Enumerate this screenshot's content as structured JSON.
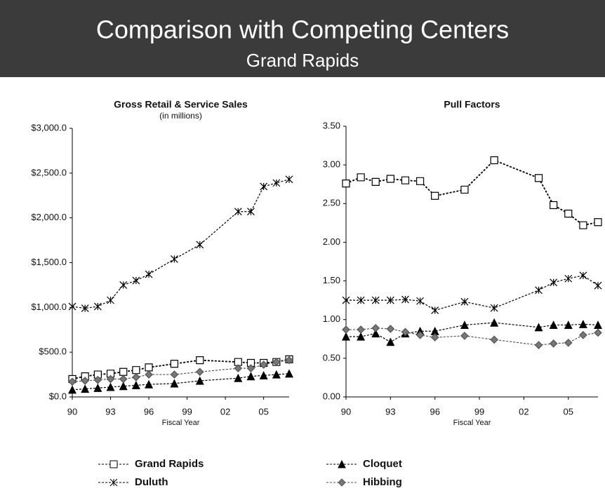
{
  "header": {
    "title": "Comparison with Competing Centers",
    "subtitle": "Grand Rapids"
  },
  "chart_data": [
    {
      "type": "line",
      "title": "Gross Retail & Service Sales",
      "subtitle": "(in millions)",
      "x_label": "Fiscal Year",
      "x": [
        1990,
        1991,
        1992,
        1993,
        1994,
        1995,
        1996,
        1998,
        2000,
        2003,
        2004,
        2005,
        2006,
        2007
      ],
      "xlim": [
        1990,
        2007
      ],
      "xticks": [
        {
          "value": 1990,
          "label": "90"
        },
        {
          "value": 1993,
          "label": "93"
        },
        {
          "value": 1996,
          "label": "96"
        },
        {
          "value": 1999,
          "label": "99"
        },
        {
          "value": 2002,
          "label": "02"
        },
        {
          "value": 2005,
          "label": "05"
        }
      ],
      "ylim": [
        0,
        3000
      ],
      "yticks": [
        {
          "value": 0,
          "label": "$0.0"
        },
        {
          "value": 500,
          "label": "$500.0"
        },
        {
          "value": 1000,
          "label": "$1,000.0"
        },
        {
          "value": 1500,
          "label": "$1,500.0"
        },
        {
          "value": 2000,
          "label": "$2,000.0"
        },
        {
          "value": 2500,
          "label": "$2,500.0"
        },
        {
          "value": 3000,
          "label": "$3,000.0"
        }
      ],
      "series": [
        {
          "name": "Grand Rapids",
          "color": "#000000",
          "marker": "square",
          "values": [
            200,
            230,
            250,
            260,
            280,
            300,
            330,
            370,
            410,
            390,
            380,
            380,
            390,
            420
          ]
        },
        {
          "name": "Duluth",
          "color": "#000000",
          "marker": "x",
          "values": [
            1010,
            990,
            1010,
            1080,
            1250,
            1300,
            1370,
            1540,
            1700,
            2070,
            2070,
            2350,
            2390,
            2430
          ]
        },
        {
          "name": "Cloquet",
          "color": "#000000",
          "marker": "triangle",
          "values": [
            80,
            90,
            100,
            110,
            120,
            130,
            140,
            150,
            180,
            210,
            230,
            240,
            250,
            260
          ]
        },
        {
          "name": "Hibbing",
          "color": "#555555",
          "marker": "diamond",
          "values": [
            170,
            180,
            190,
            200,
            200,
            220,
            250,
            250,
            280,
            320,
            320,
            360,
            390,
            410
          ]
        }
      ]
    },
    {
      "type": "line",
      "title": "Pull Factors",
      "x_label": "Fiscal Year",
      "x": [
        1990,
        1991,
        1992,
        1993,
        1994,
        1995,
        1996,
        1998,
        2000,
        2003,
        2004,
        2005,
        2006,
        2007
      ],
      "xlim": [
        1990,
        2007
      ],
      "xticks": [
        {
          "value": 1990,
          "label": "90"
        },
        {
          "value": 1993,
          "label": "93"
        },
        {
          "value": 1996,
          "label": "96"
        },
        {
          "value": 1999,
          "label": "99"
        },
        {
          "value": 2002,
          "label": "02"
        },
        {
          "value": 2005,
          "label": "05"
        }
      ],
      "ylim": [
        0,
        3.5
      ],
      "yticks": [
        {
          "value": 0,
          "label": "0.00"
        },
        {
          "value": 0.5,
          "label": "0.50"
        },
        {
          "value": 1,
          "label": "1.00"
        },
        {
          "value": 1.5,
          "label": "1.50"
        },
        {
          "value": 2,
          "label": "2.00"
        },
        {
          "value": 2.5,
          "label": "2.50"
        },
        {
          "value": 3,
          "label": "3.00"
        },
        {
          "value": 3.5,
          "label": "3.50"
        }
      ],
      "series": [
        {
          "color": "#000000",
          "marker": "square",
          "values": [
            2.76,
            2.84,
            2.78,
            2.82,
            2.8,
            2.79,
            2.6,
            2.68,
            3.06,
            2.83,
            2.48,
            2.37,
            2.22,
            2.26
          ]
        },
        {
          "color": "#000000",
          "marker": "x",
          "values": [
            1.25,
            1.25,
            1.25,
            1.25,
            1.26,
            1.24,
            1.12,
            1.23,
            1.15,
            1.38,
            1.48,
            1.53,
            1.57,
            1.44
          ]
        },
        {
          "color": "#000000",
          "marker": "triangle",
          "values": [
            0.78,
            0.78,
            0.82,
            0.71,
            0.82,
            0.85,
            0.85,
            0.93,
            0.96,
            0.9,
            0.93,
            0.93,
            0.94,
            0.93
          ]
        },
        {
          "color": "#555555",
          "marker": "diamond",
          "values": [
            0.87,
            0.87,
            0.89,
            0.88,
            0.84,
            0.8,
            0.77,
            0.79,
            0.74,
            0.67,
            0.69,
            0.7,
            0.8,
            0.83
          ]
        }
      ]
    }
  ]
}
